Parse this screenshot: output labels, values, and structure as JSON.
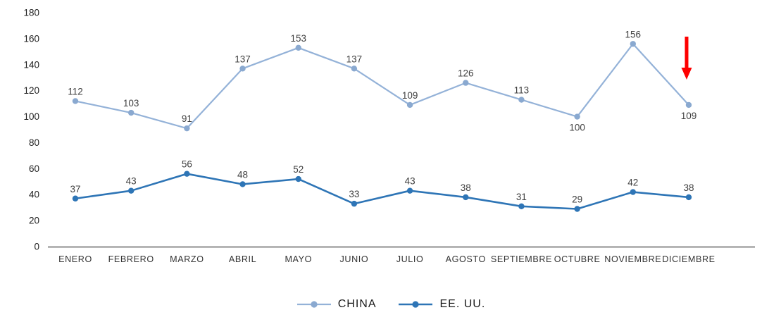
{
  "chart_data": {
    "type": "line",
    "categories": [
      "ENERO",
      "FEBRERO",
      "MARZO",
      "ABRIL",
      "MAYO",
      "JUNIO",
      "JULIO",
      "AGOSTO",
      "SEPTIEMBRE",
      "OCTUBRE",
      "NOVIEMBRE",
      "DICIEMBRE"
    ],
    "series": [
      {
        "name": "CHINA",
        "color": "#94b2d8",
        "marker_color": "#8aa9d0",
        "line_width": 2.2,
        "values": [
          112,
          103,
          91,
          137,
          153,
          137,
          109,
          126,
          113,
          100,
          156,
          109
        ],
        "labels_below": [
          9,
          11
        ]
      },
      {
        "name": "EE. UU.",
        "color": "#2e75b6",
        "marker_color": "#2e75b6",
        "line_width": 2.6,
        "values": [
          37,
          43,
          56,
          48,
          52,
          33,
          43,
          38,
          31,
          29,
          42,
          38
        ],
        "labels_below": []
      }
    ],
    "title": "",
    "xlabel": "",
    "ylabel": "",
    "ylim": [
      0,
      180
    ],
    "yticks": [
      0,
      20,
      40,
      60,
      80,
      100,
      120,
      140,
      160,
      180
    ],
    "grid": false,
    "legend_position": "bottom-center",
    "axis_color": "#a6a6a6",
    "data_label_color": "#3f3f3f",
    "annotation": {
      "type": "down-arrow",
      "color": "#fe0000",
      "target_series": "CHINA",
      "target_category": "DICIEMBRE"
    }
  }
}
